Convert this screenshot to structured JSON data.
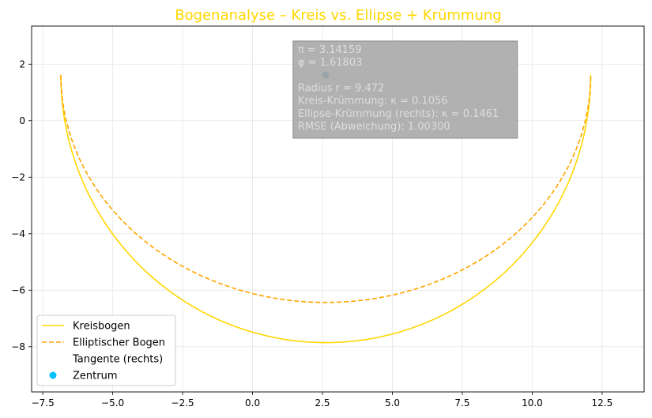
{
  "chart_data": {
    "type": "line",
    "title": "Bogenanalyse – Kreis vs. Ellipse + Krümmung",
    "title_color": "#ffd700",
    "xlabel": "",
    "ylabel": "",
    "xlim": [
      -7.9,
      14.0
    ],
    "ylim": [
      -9.6,
      3.35
    ],
    "x_ticks": [
      -7.5,
      -5.0,
      -2.5,
      0.0,
      2.5,
      5.0,
      7.5,
      10.0,
      12.5
    ],
    "x_tick_labels": [
      "−7.5",
      "−5.0",
      "−2.5",
      "0.0",
      "2.5",
      "5.0",
      "7.5",
      "10.0",
      "12.5"
    ],
    "y_ticks": [
      -8,
      -6,
      -4,
      -2,
      0,
      2
    ],
    "y_tick_labels": [
      "−8",
      "−6",
      "−4",
      "−2",
      "0",
      "2"
    ],
    "grid": true,
    "center": {
      "x": 2.618,
      "y": 1.618
    },
    "series": [
      {
        "name": "Kreisbogen",
        "kind": "circle-arc",
        "radius": 9.472,
        "theta_start_deg": 180,
        "theta_end_deg": 360,
        "color": "#ffd700",
        "style": "solid"
      },
      {
        "name": "Elliptischer Bogen",
        "kind": "ellipse-arc",
        "rx": 9.472,
        "ry": 8.05,
        "theta_start_deg": 180,
        "theta_end_deg": 360,
        "color": "#ffa500",
        "style": "dashed"
      },
      {
        "name": "Tangente (rechts)",
        "kind": "tangent",
        "color": "#ffffff",
        "style": "solid"
      },
      {
        "name": "Zentrum",
        "kind": "point",
        "color": "#00bfff"
      }
    ],
    "annotation": {
      "lines": [
        "π = 3.14159",
        "φ = 1.61803",
        "",
        "Radius r = 9.472",
        "Kreis-Krümmung: κ = 0.1056",
        "Ellipse-Krümmung (rechts): κ ≈ 0.1461",
        "RMSE (Abweichung): 1.00300"
      ],
      "box_color": "#a9a9a9"
    },
    "legend": {
      "position": "lower-left"
    },
    "center_marker_color": "#0080c0"
  }
}
